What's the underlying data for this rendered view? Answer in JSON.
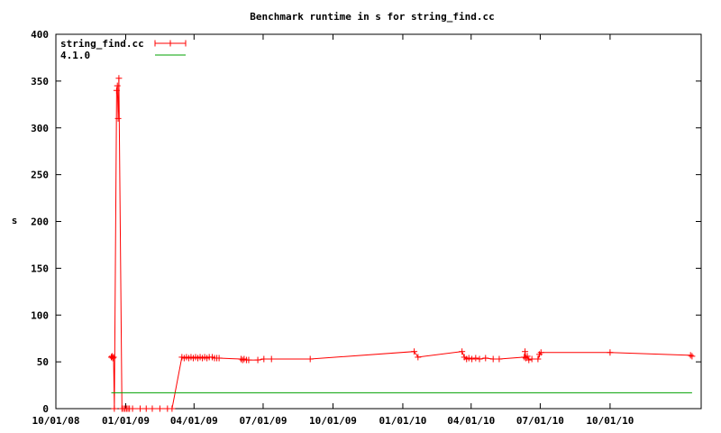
{
  "chart_data": {
    "type": "line",
    "title": "Benchmark runtime in s for string_find.cc",
    "xlabel": "",
    "ylabel": "s",
    "xlim": [
      "2008-10-01",
      "2011-01-29"
    ],
    "ylim": [
      0,
      400
    ],
    "grid": false,
    "legend_position": "top-left",
    "x_ticks": [
      "10/01/08",
      "01/01/09",
      "04/01/09",
      "07/01/09",
      "10/01/09",
      "01/01/10",
      "04/01/10",
      "07/01/10",
      "10/01/10"
    ],
    "x_tick_dates": [
      "2008-10-01",
      "2009-01-01",
      "2009-04-01",
      "2009-07-01",
      "2009-10-01",
      "2010-01-01",
      "2010-04-01",
      "2010-07-01",
      "2010-10-01"
    ],
    "y_ticks": [
      0,
      50,
      100,
      150,
      200,
      250,
      300,
      350,
      400
    ],
    "series": [
      {
        "name": "string_find.cc",
        "color": "#ff0000",
        "marker": "plus",
        "points": [
          [
            "2008-12-13",
            55
          ],
          [
            "2008-12-14",
            56
          ],
          [
            "2008-12-15",
            54
          ],
          [
            "2008-12-16",
            55
          ],
          [
            "2008-12-17",
            0
          ],
          [
            "2008-12-20",
            340
          ],
          [
            "2008-12-21",
            345
          ],
          [
            "2008-12-22",
            310
          ],
          [
            "2008-12-23",
            353
          ],
          [
            "2008-12-27",
            0
          ],
          [
            "2008-12-29",
            0
          ],
          [
            "2008-12-31",
            0
          ],
          [
            "2009-01-02",
            0
          ],
          [
            "2009-01-04",
            0
          ],
          [
            "2009-01-06",
            0
          ],
          [
            "2009-01-10",
            0
          ],
          [
            "2009-01-20",
            0
          ],
          [
            "2009-01-28",
            0
          ],
          [
            "2009-02-05",
            0
          ],
          [
            "2009-02-15",
            0
          ],
          [
            "2009-02-25",
            0
          ],
          [
            "2009-03-03",
            0
          ],
          [
            "2009-03-16",
            55
          ],
          [
            "2009-03-19",
            54
          ],
          [
            "2009-03-22",
            55
          ],
          [
            "2009-03-25",
            54
          ],
          [
            "2009-03-28",
            55
          ],
          [
            "2009-03-31",
            54
          ],
          [
            "2009-04-03",
            55
          ],
          [
            "2009-04-06",
            54
          ],
          [
            "2009-04-09",
            55
          ],
          [
            "2009-04-12",
            54
          ],
          [
            "2009-04-15",
            55
          ],
          [
            "2009-04-18",
            54
          ],
          [
            "2009-04-21",
            55
          ],
          [
            "2009-04-25",
            55
          ],
          [
            "2009-04-28",
            54
          ],
          [
            "2009-05-01",
            54
          ],
          [
            "2009-05-04",
            54
          ],
          [
            "2009-06-02",
            53
          ],
          [
            "2009-06-04",
            52
          ],
          [
            "2009-06-06",
            53
          ],
          [
            "2009-06-09",
            52
          ],
          [
            "2009-06-12",
            52
          ],
          [
            "2009-06-24",
            52
          ],
          [
            "2009-07-02",
            53
          ],
          [
            "2009-07-12",
            53
          ],
          [
            "2009-09-01",
            53
          ],
          [
            "2010-01-16",
            61
          ],
          [
            "2010-01-21",
            55
          ],
          [
            "2010-03-20",
            61
          ],
          [
            "2010-03-23",
            55
          ],
          [
            "2010-03-26",
            53
          ],
          [
            "2010-03-29",
            54
          ],
          [
            "2010-04-02",
            53
          ],
          [
            "2010-04-07",
            54
          ],
          [
            "2010-04-12",
            53
          ],
          [
            "2010-04-20",
            54
          ],
          [
            "2010-04-30",
            53
          ],
          [
            "2010-05-08",
            53
          ],
          [
            "2010-06-10",
            55
          ],
          [
            "2010-06-11",
            61
          ],
          [
            "2010-06-12",
            54
          ],
          [
            "2010-06-14",
            56
          ],
          [
            "2010-06-16",
            52
          ],
          [
            "2010-06-20",
            53
          ],
          [
            "2010-06-28",
            53
          ],
          [
            "2010-06-30",
            58
          ],
          [
            "2010-07-02",
            60
          ],
          [
            "2010-10-01",
            60
          ],
          [
            "2011-01-15",
            57
          ],
          [
            "2011-01-17",
            56
          ]
        ]
      },
      {
        "name": "4.1.0",
        "color": "#00a000",
        "marker": "none",
        "points": [
          [
            "2008-12-13",
            17
          ],
          [
            "2011-01-17",
            17
          ]
        ]
      }
    ]
  }
}
